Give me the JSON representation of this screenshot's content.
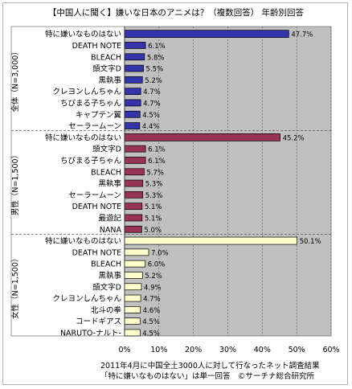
{
  "title": "【中国人に聞く】嫌いな日本のアニメは？（複数回答） 年齢別回答",
  "note": [
    "2011年4月に中国全土3000人に対して行なったネット調査結果",
    "「特に嫌いなものはない」は単一回答　©サーチナ総合研究所"
  ],
  "chart_data": {
    "type": "bar",
    "orientation": "horizontal",
    "xlim": [
      0,
      60
    ],
    "xticks": [
      0,
      10,
      20,
      30,
      40,
      50,
      60
    ],
    "tick_labels": [
      "0%",
      "10%",
      "20%",
      "30%",
      "40%",
      "50%",
      "60%"
    ],
    "grid": true,
    "groups": [
      {
        "label": "全体（N=3,000）",
        "color": "#3333aa",
        "highlight_color": "#3333aa",
        "categories": [
          "特に嫌いなものはない",
          "DEATH NOTE",
          "BLEACH",
          "頭文字D",
          "黒執事",
          "クレヨンしんちゃん",
          "ちびまる子ちゃん",
          "キャプテン翼",
          "セーラームーン"
        ],
        "values": [
          47.7,
          6.1,
          5.8,
          5.5,
          5.2,
          4.7,
          4.7,
          4.5,
          4.4
        ],
        "value_labels": [
          "47.7%",
          "6.1%",
          "5.8%",
          "5.5%",
          "5.2%",
          "4.7%",
          "4.7%",
          "4.5%",
          "4.4%"
        ]
      },
      {
        "label": "男性（N=1,500）",
        "color": "#993355",
        "highlight_color": "#993355",
        "categories": [
          "特に嫌いなものはない",
          "頭文字D",
          "ちびまる子ちゃん",
          "BLEACH",
          "黒執事",
          "セーラームーン",
          "DEATH NOTE",
          "最遊記",
          "NANA"
        ],
        "values": [
          45.2,
          6.1,
          6.1,
          5.7,
          5.3,
          5.3,
          5.1,
          5.1,
          5.0
        ],
        "value_labels": [
          "45.2%",
          "6.1%",
          "6.1%",
          "5.7%",
          "5.3%",
          "5.3%",
          "5.1%",
          "5.1%",
          "5.0%"
        ]
      },
      {
        "label": "女性（N=1,500）",
        "color": "#ffffcc",
        "highlight_color": "#ffffcc",
        "categories": [
          "特に嫌いなものはない",
          "DEATH NOTE",
          "BLEACH",
          "黒執事",
          "頭文字D",
          "クレヨンしんちゃん",
          "北斗の拳",
          "コードギアス",
          "NARUTO-ナルト-"
        ],
        "values": [
          50.1,
          7.0,
          6.0,
          5.2,
          4.9,
          4.7,
          4.6,
          4.5,
          4.5
        ],
        "value_labels": [
          "50.1%",
          "7.0%",
          "6.0%",
          "5.2%",
          "4.9%",
          "4.7%",
          "4.6%",
          "4.5%",
          "4.5%"
        ]
      }
    ],
    "colors": {
      "plot_bg": "#c0c0c0",
      "label_bg": "#ffffff",
      "bar_stroke": "#000000"
    }
  }
}
